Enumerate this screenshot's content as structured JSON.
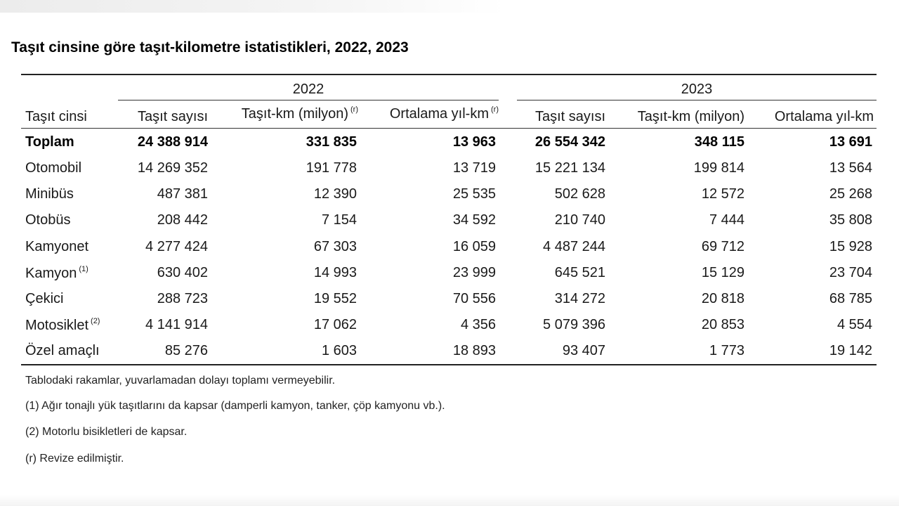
{
  "title": "Taşıt cinsine göre taşıt-kilometre istatistikleri, 2022, 2023",
  "years": [
    "2022",
    "2023"
  ],
  "headers": {
    "type": "Taşıt cinsi",
    "count_2022": "Taşıt sayısı",
    "km_2022": "Taşıt-km (milyon)",
    "km_2022_mark": "(r)",
    "avg_2022": "Ortalama yıl-km",
    "avg_2022_mark": "(r)",
    "count_2023": "Taşıt sayısı",
    "km_2023": "Taşıt-km (milyon)",
    "avg_2023": "Ortalama yıl-km"
  },
  "rows": [
    {
      "name": "Toplam",
      "mark": "",
      "c22": "24 388 914",
      "k22": "331 835",
      "a22": "13 963",
      "c23": "26 554 342",
      "k23": "348 115",
      "a23": "13 691"
    },
    {
      "name": "Otomobil",
      "mark": "",
      "c22": "14 269 352",
      "k22": "191 778",
      "a22": "13 719",
      "c23": "15 221 134",
      "k23": "199 814",
      "a23": "13 564"
    },
    {
      "name": "Minibüs",
      "mark": "",
      "c22": "487 381",
      "k22": "12 390",
      "a22": "25 535",
      "c23": "502 628",
      "k23": "12 572",
      "a23": "25 268"
    },
    {
      "name": "Otobüs",
      "mark": "",
      "c22": "208 442",
      "k22": "7 154",
      "a22": "34 592",
      "c23": "210 740",
      "k23": "7 444",
      "a23": "35 808"
    },
    {
      "name": "Kamyonet",
      "mark": "",
      "c22": "4 277 424",
      "k22": "67 303",
      "a22": "16 059",
      "c23": "4 487 244",
      "k23": "69 712",
      "a23": "15 928"
    },
    {
      "name": "Kamyon",
      "mark": "(1)",
      "c22": "630 402",
      "k22": "14 993",
      "a22": "23 999",
      "c23": "645 521",
      "k23": "15 129",
      "a23": "23 704"
    },
    {
      "name": "Çekici",
      "mark": "",
      "c22": "288 723",
      "k22": "19 552",
      "a22": "70 556",
      "c23": "314 272",
      "k23": "20 818",
      "a23": "68 785"
    },
    {
      "name": "Motosiklet",
      "mark": "(2)",
      "c22": "4 141 914",
      "k22": "17 062",
      "a22": "4 356",
      "c23": "5 079 396",
      "k23": "20 853",
      "a23": "4 554"
    },
    {
      "name": "Özel amaçlı",
      "mark": "",
      "c22": "85 276",
      "k22": "1 603",
      "a22": "18 893",
      "c23": "93 407",
      "k23": "1 773",
      "a23": "19 142"
    }
  ],
  "notes": [
    "Tablodaki rakamlar, yuvarlamadan dolayı toplamı vermeyebilir.",
    "(1) Ağır tonajlı yük  taşıtlarını da kapsar (damperli kamyon, tanker, çöp kamyonu vb.).",
    "(2) Motorlu bisikletleri de kapsar.",
    "(r) Revize edilmiştir."
  ]
}
